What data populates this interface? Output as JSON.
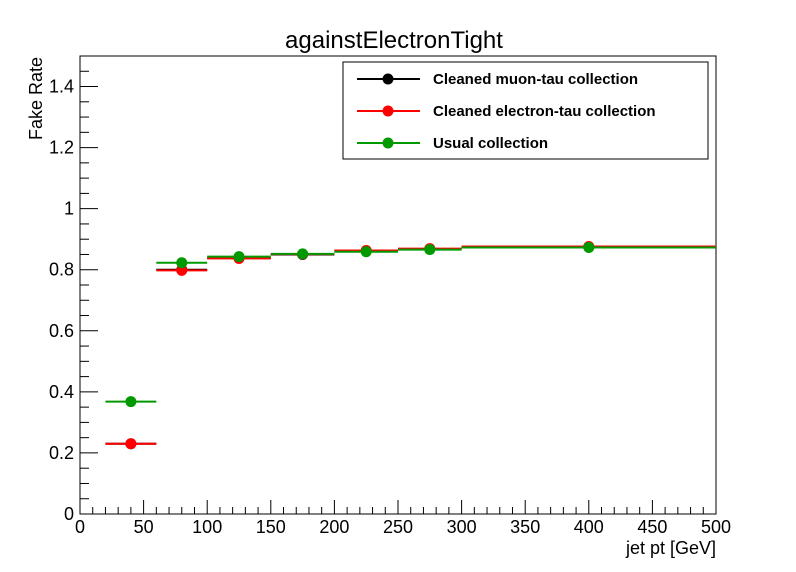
{
  "chart_data": {
    "type": "scatter",
    "title": "againstElectronTight",
    "xlabel": "jet pt [GeV]",
    "ylabel": "Fake Rate",
    "xlim": [
      0,
      500
    ],
    "ylim": [
      0,
      1.5
    ],
    "x_ticks": [
      "0",
      "50",
      "100",
      "150",
      "200",
      "250",
      "300",
      "350",
      "400",
      "450",
      "500"
    ],
    "y_ticks": [
      "0",
      "0.2",
      "0.4",
      "0.6",
      "0.8",
      "1",
      "1.2",
      "1.4"
    ],
    "legend_position": "top-right",
    "series": [
      {
        "name": "Cleaned muon-tau collection",
        "color": "#000000",
        "points": [
          {
            "x": 40,
            "xlow": 20,
            "xhigh": 60,
            "y": 0.23
          },
          {
            "x": 80,
            "xlow": 60,
            "xhigh": 100,
            "y": 0.8
          },
          {
            "x": 125,
            "xlow": 100,
            "xhigh": 150,
            "y": 0.838
          },
          {
            "x": 175,
            "xlow": 150,
            "xhigh": 200,
            "y": 0.85
          },
          {
            "x": 225,
            "xlow": 200,
            "xhigh": 250,
            "y": 0.862
          },
          {
            "x": 275,
            "xlow": 250,
            "xhigh": 300,
            "y": 0.868
          },
          {
            "x": 400,
            "xlow": 300,
            "xhigh": 500,
            "y": 0.875
          }
        ]
      },
      {
        "name": "Cleaned electron-tau collection",
        "color": "#ff0000",
        "points": [
          {
            "x": 40,
            "xlow": 20,
            "xhigh": 60,
            "y": 0.23
          },
          {
            "x": 80,
            "xlow": 60,
            "xhigh": 100,
            "y": 0.798
          },
          {
            "x": 125,
            "xlow": 100,
            "xhigh": 150,
            "y": 0.837
          },
          {
            "x": 175,
            "xlow": 150,
            "xhigh": 200,
            "y": 0.851
          },
          {
            "x": 225,
            "xlow": 200,
            "xhigh": 250,
            "y": 0.863
          },
          {
            "x": 275,
            "xlow": 250,
            "xhigh": 300,
            "y": 0.869
          },
          {
            "x": 400,
            "xlow": 300,
            "xhigh": 500,
            "y": 0.876
          }
        ]
      },
      {
        "name": "Usual collection",
        "color": "#009900",
        "points": [
          {
            "x": 40,
            "xlow": 20,
            "xhigh": 60,
            "y": 0.368
          },
          {
            "x": 80,
            "xlow": 60,
            "xhigh": 100,
            "y": 0.823
          },
          {
            "x": 125,
            "xlow": 100,
            "xhigh": 150,
            "y": 0.843
          },
          {
            "x": 175,
            "xlow": 150,
            "xhigh": 200,
            "y": 0.852
          },
          {
            "x": 225,
            "xlow": 200,
            "xhigh": 250,
            "y": 0.859
          },
          {
            "x": 275,
            "xlow": 250,
            "xhigh": 300,
            "y": 0.866
          },
          {
            "x": 400,
            "xlow": 300,
            "xhigh": 500,
            "y": 0.873
          }
        ]
      }
    ]
  }
}
